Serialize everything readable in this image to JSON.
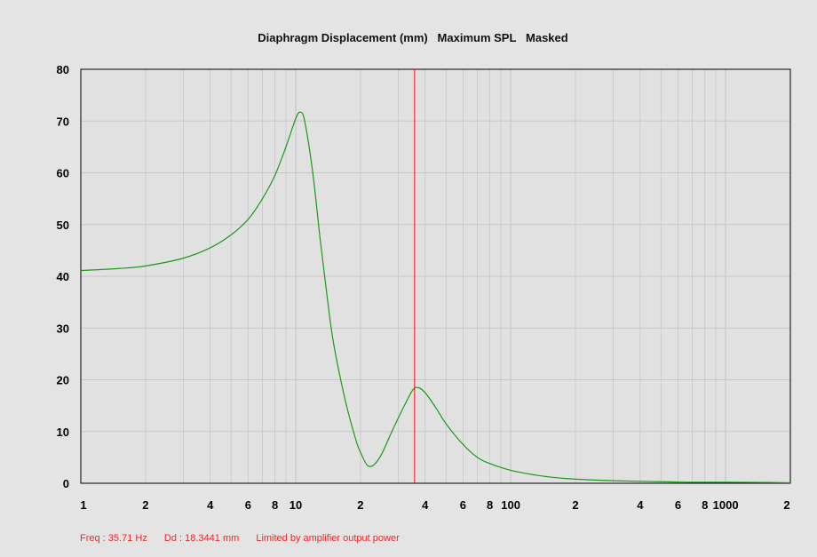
{
  "chart_data": {
    "type": "line",
    "title": "Diaphragm Displacement (mm)   Maximum SPL   Masked",
    "xlabel": "",
    "ylabel": "",
    "x_scale": "log",
    "xlim": [
      1,
      2000
    ],
    "ylim": [
      0,
      80
    ],
    "grid": true,
    "legend": "none",
    "y_ticks": [
      "0",
      "10",
      "20",
      "30",
      "40",
      "50",
      "60",
      "70",
      "80"
    ],
    "x_ticks": [
      {
        "value": 1,
        "label": "1"
      },
      {
        "value": 2,
        "label": "2"
      },
      {
        "value": 4,
        "label": "4"
      },
      {
        "value": 6,
        "label": "6"
      },
      {
        "value": 8,
        "label": "8"
      },
      {
        "value": 10,
        "label": "10"
      },
      {
        "value": 20,
        "label": "2"
      },
      {
        "value": 40,
        "label": "4"
      },
      {
        "value": 60,
        "label": "6"
      },
      {
        "value": 80,
        "label": "8"
      },
      {
        "value": 100,
        "label": "100"
      },
      {
        "value": 200,
        "label": "2"
      },
      {
        "value": 400,
        "label": "4"
      },
      {
        "value": 600,
        "label": "6"
      },
      {
        "value": 800,
        "label": "8"
      },
      {
        "value": 1000,
        "label": "1000"
      },
      {
        "value": 2000,
        "label": "2"
      }
    ],
    "series": [
      {
        "color": "#1a9a1a",
        "x": [
          1,
          1.5,
          2,
          3,
          4,
          5,
          6,
          7,
          8,
          9,
          10,
          10.5,
          11,
          12,
          13,
          14,
          15,
          17,
          19,
          20,
          21.5,
          23,
          25,
          28,
          32,
          35,
          37,
          40,
          45,
          50,
          60,
          70,
          80,
          100,
          130,
          160,
          200,
          300,
          500,
          700,
          1000,
          1500,
          2000
        ],
        "y": [
          41.1,
          41.5,
          42.0,
          43.5,
          45.5,
          48.0,
          51.0,
          55.0,
          59.5,
          65.0,
          70.5,
          71.7,
          70.0,
          60.0,
          47.0,
          36.0,
          27.0,
          16.0,
          8.5,
          6.0,
          3.5,
          3.5,
          5.5,
          10.0,
          15.0,
          18.0,
          18.5,
          17.5,
          14.5,
          11.5,
          7.5,
          5.0,
          3.8,
          2.5,
          1.6,
          1.1,
          0.8,
          0.5,
          0.3,
          0.2,
          0.2,
          0.15,
          0.1
        ]
      }
    ],
    "cursor": {
      "x": 35.71,
      "color": "#ff0000"
    }
  },
  "status": {
    "freq": "Freq : 35.71 Hz",
    "dd": "Dd : 18.3441 mm",
    "note": "Limited by amplifier output power"
  },
  "colors": {
    "plot_background": "#e1e1e1",
    "grid": "#c8c8c8",
    "curve": "#1a9a1a",
    "cursor": "#ff0000",
    "status_text": "#ff2020"
  }
}
